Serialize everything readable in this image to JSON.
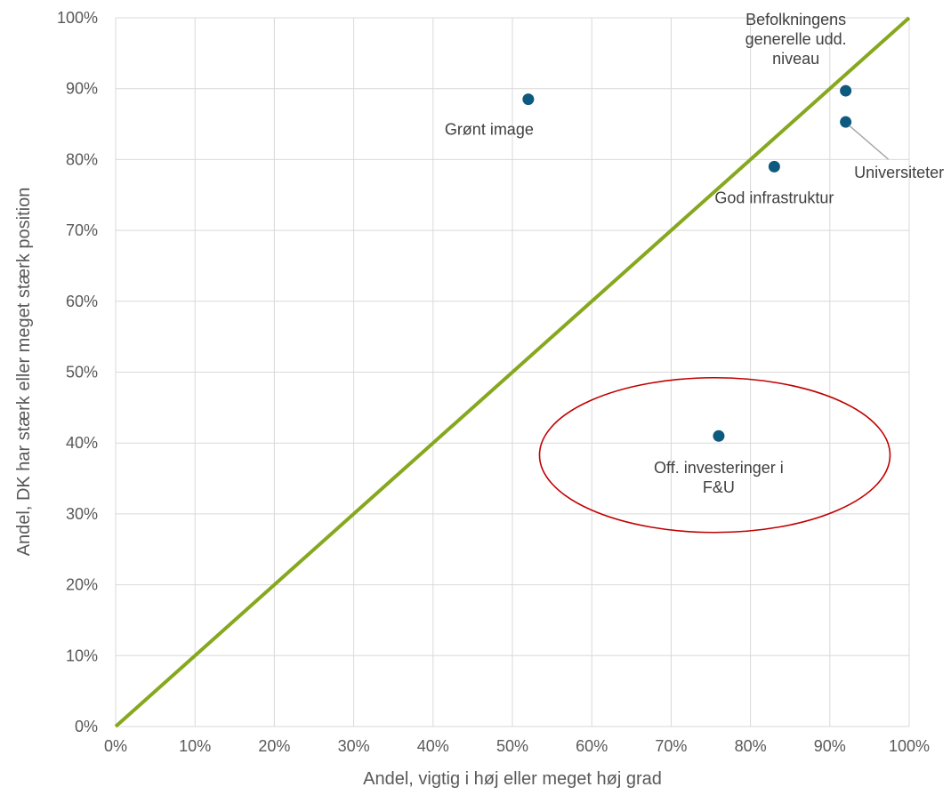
{
  "chart_data": {
    "type": "scatter",
    "xlabel": "Andel, vigtig i høj eller meget høj grad",
    "ylabel": "Andel, DK har stærk eller meget stærk position",
    "xlim": [
      0,
      100
    ],
    "ylim": [
      0,
      100
    ],
    "x_ticks": [
      "0%",
      "10%",
      "20%",
      "30%",
      "40%",
      "50%",
      "60%",
      "70%",
      "80%",
      "90%",
      "100%"
    ],
    "y_ticks": [
      "0%",
      "10%",
      "20%",
      "30%",
      "40%",
      "50%",
      "60%",
      "70%",
      "80%",
      "90%",
      "100%"
    ],
    "grid": true,
    "reference_line": {
      "from": [
        0,
        0
      ],
      "to": [
        100,
        100
      ],
      "color": "#86a81e"
    },
    "points": [
      {
        "label": [
          "Grønt image"
        ],
        "x": 52,
        "y": 88.5
      },
      {
        "label": [
          "Befolkningens",
          "generelle udd.",
          "niveau"
        ],
        "x": 92,
        "y": 89.7
      },
      {
        "label": [
          "Universiteter"
        ],
        "x": 92,
        "y": 85.3
      },
      {
        "label": [
          "God infrastruktur"
        ],
        "x": 83,
        "y": 79
      },
      {
        "label": [
          "Off. investeringer i",
          "F&U"
        ],
        "x": 76,
        "y": 41
      }
    ],
    "highlight_ellipse": {
      "center": [
        75.5,
        38.3
      ],
      "color": "#c00000"
    },
    "point_color": "#0e5a7e"
  }
}
